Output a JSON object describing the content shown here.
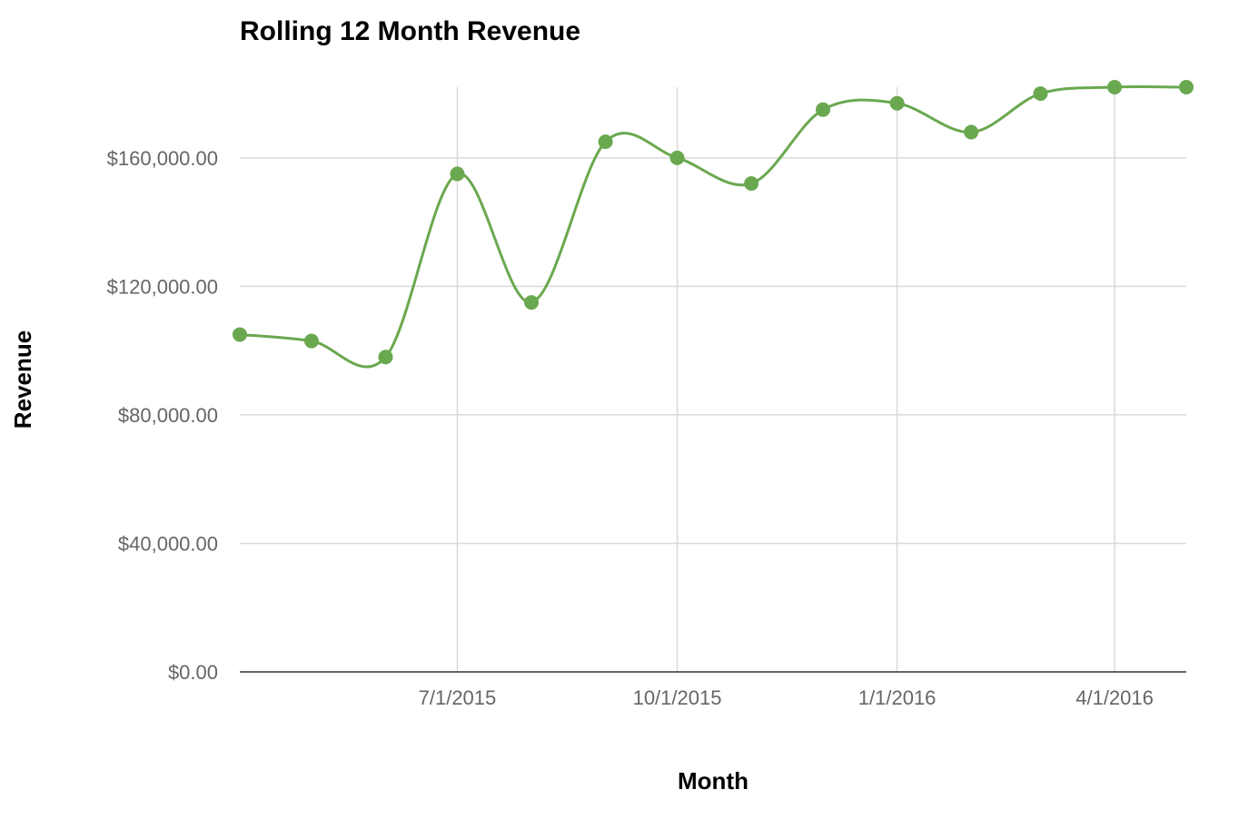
{
  "chart_data": {
    "type": "line",
    "title": "Rolling 12 Month Revenue",
    "xlabel": "Month",
    "ylabel": "Revenue",
    "smooth": true,
    "grid": true,
    "legend": "none",
    "color": "#6aa84f",
    "x_ticks": [
      "7/1/2015",
      "10/1/2015",
      "1/1/2016",
      "4/1/2016"
    ],
    "y_ticks": [
      0,
      40000,
      80000,
      120000,
      160000
    ],
    "y_tick_labels": [
      "$0.00",
      "$40,000.00",
      "$80,000.00",
      "$120,000.00",
      "$160,000.00"
    ],
    "xlim": [
      "2015-04-01",
      "2016-05-01"
    ],
    "ylim": [
      0,
      182000
    ],
    "series": [
      {
        "x": [
          "2015-04-01",
          "2015-05-01",
          "2015-06-01",
          "2015-07-01",
          "2015-08-01",
          "2015-09-01",
          "2015-10-01",
          "2015-11-01",
          "2015-12-01",
          "2016-01-01",
          "2016-02-01",
          "2016-03-01",
          "2016-04-01",
          "2016-05-01"
        ],
        "values": [
          105000,
          103000,
          98000,
          155000,
          115000,
          165000,
          160000,
          152000,
          175000,
          177000,
          168000,
          180000,
          182000,
          182000
        ]
      }
    ]
  }
}
